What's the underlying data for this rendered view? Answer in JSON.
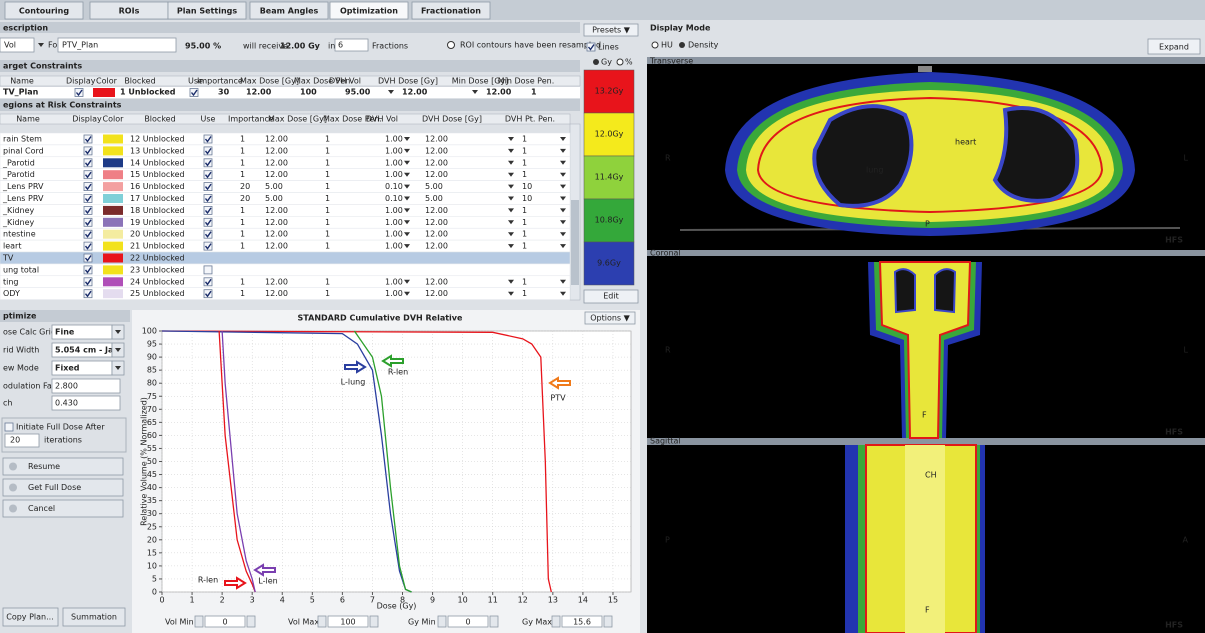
{
  "tabs": [
    "Contouring",
    "ROIs",
    "Plan Settings",
    "Beam Angles",
    "Optimization",
    "Fractionation"
  ],
  "active_tab": 4,
  "disabled_tab": 3,
  "prescription": {
    "title": "escription",
    "mode": "Vol",
    "for_label": "For:",
    "roi": "PTV_Plan",
    "percent": "95.00 %",
    "will_receive": "will receive",
    "dose": "12.00 Gy",
    "in": "in",
    "fractions_value": "6",
    "fractions_label": "Fractions",
    "note": "ROI contours have been resampled"
  },
  "target_constraints": {
    "title": "arget Constraints",
    "headers": [
      "Name",
      "Display",
      "Color",
      "Blocked",
      "Use",
      "Importance",
      "Max Dose [Gy]",
      "Max Dose Pen.",
      "DVH Vol",
      "DVH Dose [Gy]",
      "Min Dose [Gy]",
      "Min Dose Pen."
    ],
    "rows": [
      {
        "name": "TV_Plan",
        "display": true,
        "color": "#e8141b",
        "blocked": "1 Unblocked",
        "use": true,
        "cells": [
          "30",
          "12.00",
          "100",
          "95.00",
          "12.00",
          "12.00",
          "1"
        ]
      }
    ]
  },
  "roi_constraints": {
    "title": "egions at Risk Constraints",
    "headers": [
      "Name",
      "Display",
      "Color",
      "Blocked",
      "Use",
      "Importance",
      "Max Dose [Gy]",
      "Max Dose Pen.",
      "DVH Vol",
      "DVH Dose [Gy]",
      "DVH Pt. Pen."
    ],
    "selected_row": 10,
    "rows": [
      {
        "name": "rain Stem",
        "display": true,
        "color": "#f2e21c",
        "blocked": "12 Unblocked",
        "use": true,
        "cells": [
          "1",
          "12.00",
          "1",
          "1.00",
          "12.00",
          "1"
        ]
      },
      {
        "name": "pinal Cord",
        "display": true,
        "color": "#f2e21c",
        "blocked": "13 Unblocked",
        "use": true,
        "cells": [
          "1",
          "12.00",
          "1",
          "1.00",
          "12.00",
          "1"
        ]
      },
      {
        "name": "_Parotid",
        "display": true,
        "color": "#1d3a86",
        "blocked": "14 Unblocked",
        "use": true,
        "cells": [
          "1",
          "12.00",
          "1",
          "1.00",
          "12.00",
          "1"
        ]
      },
      {
        "name": "_Parotid",
        "display": true,
        "color": "#ef7f86",
        "blocked": "15 Unblocked",
        "use": true,
        "cells": [
          "1",
          "12.00",
          "1",
          "1.00",
          "12.00",
          "1"
        ]
      },
      {
        "name": "_Lens PRV",
        "display": true,
        "color": "#f3a0a0",
        "blocked": "16 Unblocked",
        "use": true,
        "cells": [
          "20",
          "5.00",
          "1",
          "0.10",
          "5.00",
          "10"
        ]
      },
      {
        "name": "_Lens PRV",
        "display": true,
        "color": "#7fd0d8",
        "blocked": "17 Unblocked",
        "use": true,
        "cells": [
          "20",
          "5.00",
          "1",
          "0.10",
          "5.00",
          "10"
        ]
      },
      {
        "name": "_Kidney",
        "display": true,
        "color": "#7b2b2b",
        "blocked": "18 Unblocked",
        "use": true,
        "cells": [
          "1",
          "12.00",
          "1",
          "1.00",
          "12.00",
          "1"
        ]
      },
      {
        "name": "_Kidney",
        "display": true,
        "color": "#8b73b8",
        "blocked": "19 Unblocked",
        "use": true,
        "cells": [
          "1",
          "12.00",
          "1",
          "1.00",
          "12.00",
          "1"
        ]
      },
      {
        "name": "ntestine",
        "display": true,
        "color": "#f4eca0",
        "blocked": "20 Unblocked",
        "use": true,
        "cells": [
          "1",
          "12.00",
          "1",
          "1.00",
          "12.00",
          "1"
        ]
      },
      {
        "name": "leart",
        "display": true,
        "color": "#f2e21c",
        "blocked": "21 Unblocked",
        "use": true,
        "cells": [
          "1",
          "12.00",
          "1",
          "1.00",
          "12.00",
          "1"
        ]
      },
      {
        "name": "TV",
        "display": true,
        "color": "#e8141b",
        "blocked": "22 Unblocked",
        "use": null,
        "cells": []
      },
      {
        "name": "ung total",
        "display": true,
        "color": "#f2e21c",
        "blocked": "23 Unblocked",
        "use": false,
        "cells": []
      },
      {
        "name": "ting",
        "display": true,
        "color": "#b04fb8",
        "blocked": "24 Unblocked",
        "use": true,
        "cells": [
          "1",
          "12.00",
          "1",
          "1.00",
          "12.00",
          "1"
        ]
      },
      {
        "name": "ODY",
        "display": true,
        "color": "#e4dcef",
        "blocked": "25 Unblocked",
        "use": true,
        "cells": [
          "1",
          "12.00",
          "1",
          "1.00",
          "12.00",
          "1"
        ]
      }
    ]
  },
  "color_wash": {
    "presets": "Presets ▼",
    "lines": "Lines",
    "gy": "Gy",
    "pct": "%",
    "edit": "Edit",
    "levels": [
      {
        "label": "13.2Gy",
        "color": "#e8141b"
      },
      {
        "label": "12.0Gy",
        "color": "#f4ea1c"
      },
      {
        "label": "11.4Gy",
        "color": "#8fd23c"
      },
      {
        "label": "10.8Gy",
        "color": "#34a83a"
      },
      {
        "label": "9.6Gy",
        "color": "#2c3fb0"
      }
    ]
  },
  "optimize": {
    "title": "ptimize",
    "calc_grid_label": "ose Calc Grid",
    "calc_grid": "Fine",
    "grid_width_label": "rid Width",
    "grid_width": "5.054 cm - Ja...",
    "view_mode_label": "ew Mode",
    "view_mode": "Fixed",
    "modulation_label": "odulation Factor",
    "modulation": "2.800",
    "pitch_label": "ch",
    "pitch": "0.430",
    "initiate": "Initiate Full Dose After",
    "iterations_value": "20",
    "iterations_label": "iterations",
    "resume": "Resume",
    "full_dose": "Get Full Dose",
    "cancel": "Cancel",
    "copy_plan": "Copy Plan...",
    "summation": "Summation"
  },
  "dvh_controls": {
    "options": "Options ▼",
    "vol_min_label": "Vol Min",
    "vol_min": "0",
    "vol_max_label": "Vol Max",
    "vol_max": "100",
    "gy_min_label": "Gy Min",
    "gy_min": "0",
    "gy_max_label": "Gy Max",
    "gy_max": "15.6"
  },
  "display": {
    "title": "Display Mode",
    "hu": "HU",
    "density": "Density",
    "expand": "Expand",
    "views": [
      {
        "name": "Transverse",
        "labels": [
          "R",
          "L",
          "HFS",
          "heart",
          "lung",
          "P"
        ]
      },
      {
        "name": "Coronal",
        "labels": [
          "R",
          "L",
          "HFS",
          "F"
        ]
      },
      {
        "name": "Sagittal",
        "labels": [
          "P",
          "A",
          "HFS",
          "CH",
          "F"
        ]
      }
    ]
  },
  "chart_data": {
    "type": "line",
    "title": "STANDARD Cumulative DVH Relative",
    "xlabel": "Dose (Gy)",
    "ylabel": "Relative Volume (% Normalized)",
    "xlim": [
      0,
      15.6
    ],
    "xticks": [
      0,
      1,
      2,
      3,
      4,
      5,
      6,
      7,
      8,
      9,
      10,
      11,
      12,
      13,
      14,
      15
    ],
    "ylim": [
      0,
      100
    ],
    "yticks": [
      0,
      5,
      10,
      15,
      20,
      25,
      30,
      35,
      40,
      45,
      50,
      55,
      60,
      65,
      70,
      75,
      80,
      85,
      90,
      95,
      100
    ],
    "grid": true,
    "series": [
      {
        "name": "PTV",
        "color": "#e8141b",
        "x": [
          0,
          11,
          12,
          12.3,
          12.6,
          12.75,
          12.85,
          12.95
        ],
        "values": [
          100,
          99.5,
          97,
          95,
          90,
          50,
          5,
          0
        ]
      },
      {
        "name": "L-lung",
        "color": "#2b3fa0",
        "x": [
          0,
          6,
          6.5,
          7,
          7.3,
          7.6,
          7.9,
          8.1,
          8.3
        ],
        "values": [
          100,
          99,
          95,
          85,
          60,
          30,
          8,
          1,
          0
        ]
      },
      {
        "name": "R-len",
        "color": "#2ca02c",
        "x": [
          6.4,
          7,
          7.3,
          7.6,
          7.9,
          8.1,
          8.3
        ],
        "values": [
          100,
          90,
          75,
          40,
          10,
          1,
          0
        ]
      },
      {
        "name": "R-len",
        "color": "#e8141b",
        "x": [
          1.9,
          2,
          2.1,
          2.3,
          2.5,
          2.8,
          3,
          3.1
        ],
        "values": [
          100,
          80,
          60,
          40,
          20,
          8,
          3,
          0
        ]
      },
      {
        "name": "L-len",
        "color": "#7a3fb0",
        "x": [
          2,
          2.1,
          2.3,
          2.5,
          2.8,
          3,
          3.1
        ],
        "values": [
          100,
          80,
          55,
          30,
          12,
          5,
          0
        ]
      }
    ]
  }
}
